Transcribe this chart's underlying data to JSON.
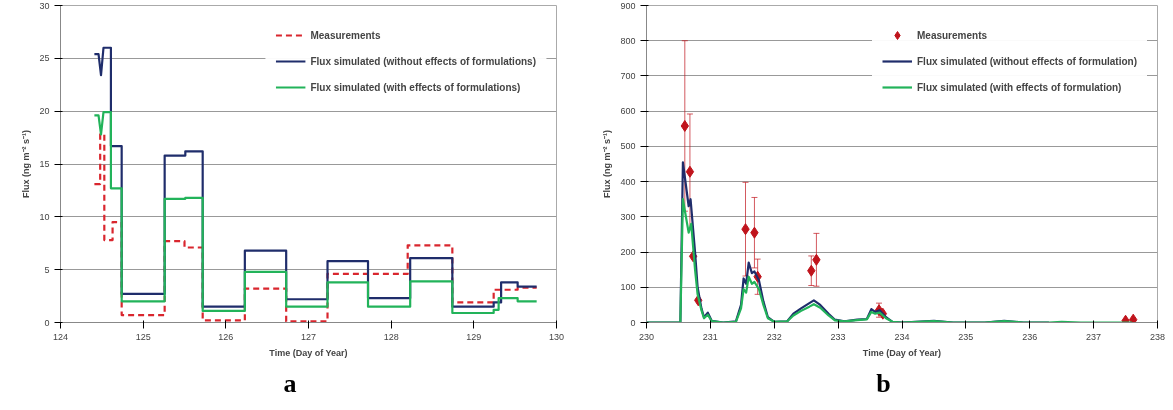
{
  "chart_data": [
    {
      "type": "line",
      "xlabel": "Time (Day of Year)",
      "ylabel": "Flux (ng m⁻² s⁻¹)",
      "xlim": [
        124,
        130
      ],
      "xticks": [
        124,
        125,
        126,
        127,
        128,
        129,
        130
      ],
      "ylim": [
        0,
        30
      ],
      "yticks": [
        0,
        5,
        10,
        15,
        20,
        25,
        30
      ],
      "grid": "y",
      "legend": "top right",
      "annotations": [
        "a"
      ],
      "series": [
        {
          "name": "Measurements",
          "color": "#d9262e",
          "line_style": "dashed",
          "x": [
            124.41,
            124.48,
            124.48,
            124.53,
            124.53,
            124.63,
            124.63,
            124.74,
            124.74,
            125.26,
            125.26,
            125.5,
            125.5,
            125.72,
            125.72,
            126.23,
            126.23,
            126.73,
            126.73,
            127.23,
            127.23,
            128.2,
            128.2,
            128.74,
            128.74,
            129.24,
            129.24,
            129.53,
            129.53,
            129.76
          ],
          "values": [
            13.1,
            13.1,
            17.8,
            17.8,
            7.8,
            7.8,
            9.5,
            9.5,
            0.7,
            0.7,
            7.7,
            7.7,
            7.1,
            7.1,
            0.2,
            0.2,
            3.2,
            3.2,
            0.1,
            0.1,
            4.6,
            4.6,
            7.3,
            7.3,
            1.9,
            1.9,
            3.1,
            3.1,
            3.3,
            3.3
          ]
        },
        {
          "name": "Flux simulated (without effects of formulations)",
          "color": "#1f2d6b",
          "line_style": "solid",
          "x": [
            124.41,
            124.46,
            124.49,
            124.52,
            124.61,
            124.61,
            124.74,
            124.74,
            125.26,
            125.26,
            125.51,
            125.51,
            125.72,
            125.72,
            126.23,
            126.23,
            126.73,
            126.73,
            127.23,
            127.23,
            127.72,
            127.72,
            128.23,
            128.23,
            128.74,
            128.74,
            129.24,
            129.24,
            129.33,
            129.33,
            129.53,
            129.53,
            129.76
          ],
          "values": [
            25.4,
            25.4,
            23.4,
            26,
            26,
            16.7,
            16.7,
            2.7,
            2.7,
            15.8,
            15.8,
            16.2,
            16.2,
            1.5,
            1.5,
            6.8,
            6.8,
            2.2,
            2.2,
            5.8,
            5.8,
            2.3,
            2.3,
            6.1,
            6.1,
            1.5,
            1.5,
            1.9,
            1.9,
            3.8,
            3.8,
            3.4,
            3.4
          ]
        },
        {
          "name": "Flux simulated (with effects of formulations)",
          "color": "#22b35a",
          "line_style": "solid",
          "x": [
            124.41,
            124.46,
            124.49,
            124.52,
            124.61,
            124.61,
            124.74,
            124.74,
            125.26,
            125.26,
            125.51,
            125.51,
            125.72,
            125.72,
            126.23,
            126.23,
            126.73,
            126.73,
            127.23,
            127.23,
            127.72,
            127.72,
            128.23,
            128.23,
            128.74,
            128.74,
            129.24,
            129.24,
            129.3,
            129.3,
            129.53,
            129.53,
            129.76
          ],
          "values": [
            19.6,
            19.6,
            17.8,
            19.9,
            19.9,
            12.7,
            12.7,
            2.0,
            2.0,
            11.7,
            11.7,
            11.8,
            11.8,
            1.1,
            1.1,
            4.8,
            4.8,
            1.5,
            1.5,
            3.8,
            3.8,
            1.5,
            1.5,
            3.9,
            3.9,
            0.9,
            0.9,
            1.2,
            1.2,
            2.3,
            2.3,
            2.0,
            2.0
          ]
        }
      ]
    },
    {
      "type": "line",
      "xlabel": "Time (Day of Year)",
      "ylabel": "Flux (ng m⁻² s⁻¹)",
      "xlim": [
        230,
        238
      ],
      "xticks": [
        230,
        231,
        232,
        233,
        234,
        235,
        236,
        237,
        238
      ],
      "ylim": [
        0,
        900
      ],
      "yticks": [
        0,
        100,
        200,
        300,
        400,
        500,
        600,
        700,
        800,
        900
      ],
      "grid": "y",
      "legend": "top right",
      "annotations": [
        "b"
      ],
      "series": [
        {
          "name": "Measurements",
          "type": "scatter",
          "marker": "diamond",
          "color": "#c0141c",
          "x": [
            230.6,
            230.68,
            230.73,
            230.81,
            231.55,
            231.69,
            231.74,
            232.58,
            232.66,
            233.64,
            233.7,
            237.5,
            237.62
          ],
          "values": [
            558,
            428,
            188,
            63,
            265,
            255,
            130,
            147,
            178,
            35,
            25,
            5,
            8
          ],
          "errors": [
            242,
            164,
            null,
            null,
            133,
            100,
            50,
            42,
            75,
            20,
            null,
            null,
            null
          ]
        },
        {
          "name": "Flux simulated (without effects of formulation)",
          "color": "#1f2d6b",
          "x": [
            230,
            230.5,
            230.53,
            230.57,
            230.66,
            230.69,
            230.76,
            230.8,
            230.86,
            230.9,
            230.96,
            231.02,
            231.2,
            231.4,
            231.48,
            231.52,
            231.56,
            231.6,
            231.65,
            231.69,
            231.76,
            231.83,
            231.9,
            232.0,
            232.2,
            232.3,
            232.42,
            232.55,
            232.62,
            232.72,
            232.85,
            232.95,
            233.1,
            233.3,
            233.45,
            233.52,
            233.58,
            233.65,
            233.75,
            233.85,
            234.0,
            234.5,
            234.8,
            235.3,
            235.6,
            235.9,
            236.3
          ],
          "values": [
            0,
            0,
            0,
            455,
            330,
            350,
            200,
            100,
            40,
            15,
            28,
            5,
            0,
            3,
            50,
            125,
            110,
            170,
            140,
            145,
            120,
            60,
            15,
            2,
            3,
            25,
            40,
            55,
            63,
            50,
            25,
            8,
            3,
            8,
            10,
            38,
            30,
            35,
            15,
            2,
            0,
            5,
            0,
            0,
            5,
            0,
            0
          ]
        },
        {
          "name": "Flux simulated (with effects of formulation)",
          "color": "#22b35a",
          "x": [
            230,
            230.5,
            230.53,
            230.57,
            230.66,
            230.7,
            230.76,
            230.8,
            230.86,
            230.9,
            230.96,
            231.02,
            231.2,
            231.4,
            231.48,
            231.52,
            231.56,
            231.6,
            231.65,
            231.69,
            231.76,
            231.83,
            231.9,
            232.0,
            232.2,
            232.3,
            232.42,
            232.55,
            232.62,
            232.72,
            232.85,
            232.95,
            233.1,
            233.3,
            233.45,
            233.52,
            233.58,
            233.65,
            233.75,
            233.85,
            234.0,
            234.5,
            234.8,
            235.3,
            235.6,
            235.9,
            236.3,
            236.5,
            236.8,
            237.6
          ],
          "values": [
            0,
            0,
            0,
            350,
            255,
            280,
            150,
            80,
            35,
            12,
            22,
            4,
            0,
            2,
            40,
            95,
            85,
            130,
            110,
            115,
            95,
            50,
            12,
            2,
            3,
            20,
            33,
            45,
            52,
            42,
            20,
            6,
            3,
            7,
            9,
            30,
            25,
            28,
            12,
            2,
            0,
            4,
            0,
            0,
            4,
            0,
            0,
            2,
            0,
            0
          ]
        }
      ]
    }
  ]
}
